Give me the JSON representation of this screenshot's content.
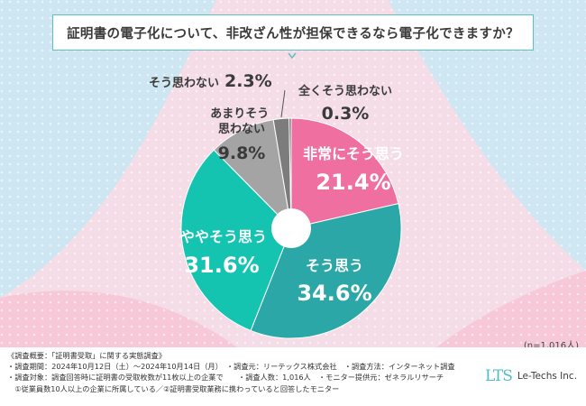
{
  "title": "証明書の電子化について、非改ざん性が担保できるなら電子化できますか？",
  "chart_data": {
    "type": "pie",
    "title": "証明書の電子化について、非改ざん性が担保できるなら電子化できますか？",
    "slices": [
      {
        "label": "非常にそう思う",
        "value": 21.4,
        "display": "21.4%",
        "color": "#ee6fa0"
      },
      {
        "label": "そう思う",
        "value": 34.6,
        "display": "34.6%",
        "color": "#2aa7a6"
      },
      {
        "label": "ややそう思う",
        "value": 31.6,
        "display": "31.6%",
        "color": "#15c4b0"
      },
      {
        "label": "あまりそう思わない",
        "value": 9.8,
        "display": "9.8%",
        "color": "#a4a4a4"
      },
      {
        "label": "そう思わない",
        "value": 2.3,
        "display": "2.3%",
        "color": "#7c7c7c"
      },
      {
        "label": "全くそう思わない",
        "value": 0.3,
        "display": "0.3%",
        "color": "#5a5a5a"
      }
    ],
    "sample_size": "(n=1,016人)"
  },
  "footer": {
    "lines": [
      "《調査概要：「証明書受取」に関する実態調査》",
      "・調査期間：2024年10月12日（土）～2024年10月14日（月）　・調査元：リーテックス株式会社　・調査方法：インターネット調査",
      "・調査対象：調査回答時に証明書の受取枚数が11枚以上の企業で　　・調査人数：1,016人　・モニター提供元：ゼネラルリサーチ",
      "　①従業員数10人以上の企業に所属している／②証明書受取業務に携わっていると回答したモニター"
    ]
  },
  "logo": {
    "mark": "LTS",
    "name": "Le-Techs Inc."
  }
}
